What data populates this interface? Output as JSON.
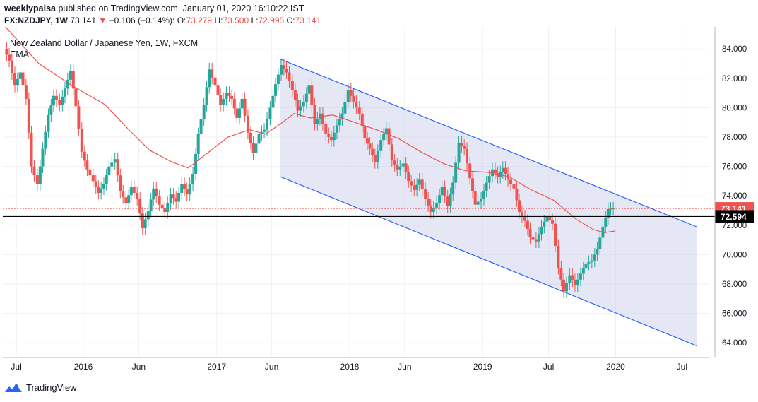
{
  "header": {
    "author": "weeklypaisa",
    "published_text": "published on TradingView.com, January 01, 2020 16:10:22 IST",
    "symbol": "FX:NZDJPY, 1W",
    "last": "73.141",
    "change_arrow": "▼",
    "change": "−0.106 (−0.14%):",
    "o_label": "O:",
    "o_value": "73.279",
    "h_label": "H:",
    "h_value": "73.500",
    "l_label": "L:",
    "l_value": "72.995",
    "c_label": "C:",
    "c_value": "73.141"
  },
  "legend": {
    "title": "New Zealand Dollar / Japanese Yen, 1W, FXCM",
    "indicator": "EMA"
  },
  "footer": {
    "brand": "TradingView"
  },
  "colors": {
    "up": "#26a69a",
    "down": "#ef5350",
    "ema": "#ef5350",
    "channel": "#2962ff",
    "channel_fill": "#c5cae9",
    "grid": "#eef0f4",
    "price_tag": "#ef5350",
    "level_tag": "#000000"
  },
  "chart_data": {
    "type": "candlestick",
    "y_axis": {
      "min": 63,
      "max": 85.5,
      "ticks": [
        64,
        66,
        68,
        70,
        72,
        74,
        76,
        78,
        80,
        82,
        84
      ],
      "tick_labels": [
        "64.000",
        "66.000",
        "68.000",
        "70.000",
        "72.000",
        "74.000",
        "76.000",
        "78.000",
        "80.000",
        "82.000",
        "84.000"
      ],
      "position": "right"
    },
    "x_axis": {
      "start": "2015-05-25",
      "end": "2020-09-14",
      "ticks": [
        {
          "date": "2015-07-01",
          "label": "Jul"
        },
        {
          "date": "2016-01-01",
          "label": "2016"
        },
        {
          "date": "2016-06-01",
          "label": "Jun"
        },
        {
          "date": "2017-01-01",
          "label": "2017"
        },
        {
          "date": "2017-06-01",
          "label": "Jun"
        },
        {
          "date": "2018-01-01",
          "label": "2018"
        },
        {
          "date": "2018-06-01",
          "label": "Jun"
        },
        {
          "date": "2019-01-01",
          "label": "2019"
        },
        {
          "date": "2019-07-01",
          "label": "Jul"
        },
        {
          "date": "2020-01-01",
          "label": "2020"
        },
        {
          "date": "2020-07-01",
          "label": "Jul"
        }
      ]
    },
    "series_close": [
      [
        "2015-06-01",
        84.0
      ],
      [
        "2015-06-15",
        83.2
      ],
      [
        "2015-07-01",
        81.5
      ],
      [
        "2015-07-15",
        82.4
      ],
      [
        "2015-08-01",
        80.6
      ],
      [
        "2015-08-15",
        76.0
      ],
      [
        "2015-09-01",
        74.8
      ],
      [
        "2015-09-15",
        77.2
      ],
      [
        "2015-10-01",
        79.5
      ],
      [
        "2015-10-15",
        80.8
      ],
      [
        "2015-11-01",
        80.2
      ],
      [
        "2015-11-15",
        81.3
      ],
      [
        "2015-12-01",
        82.5
      ],
      [
        "2015-12-15",
        80.1
      ],
      [
        "2016-01-01",
        77.0
      ],
      [
        "2016-01-15",
        75.8
      ],
      [
        "2016-02-01",
        75.0
      ],
      [
        "2016-02-15",
        74.2
      ],
      [
        "2016-03-01",
        74.8
      ],
      [
        "2016-03-15",
        76.0
      ],
      [
        "2016-04-01",
        76.5
      ],
      [
        "2016-04-15",
        74.3
      ],
      [
        "2016-05-01",
        73.5
      ],
      [
        "2016-05-15",
        74.6
      ],
      [
        "2016-06-01",
        73.8
      ],
      [
        "2016-06-15",
        71.8
      ],
      [
        "2016-07-01",
        73.0
      ],
      [
        "2016-07-15",
        74.5
      ],
      [
        "2016-08-01",
        73.4
      ],
      [
        "2016-08-15",
        72.9
      ],
      [
        "2016-09-01",
        74.1
      ],
      [
        "2016-09-15",
        73.6
      ],
      [
        "2016-10-01",
        74.8
      ],
      [
        "2016-10-15",
        74.1
      ],
      [
        "2016-11-01",
        75.5
      ],
      [
        "2016-11-15",
        78.2
      ],
      [
        "2016-12-01",
        80.2
      ],
      [
        "2016-12-15",
        82.6
      ],
      [
        "2017-01-01",
        81.5
      ],
      [
        "2017-01-15",
        80.2
      ],
      [
        "2017-02-01",
        81.0
      ],
      [
        "2017-02-15",
        80.6
      ],
      [
        "2017-03-01",
        79.3
      ],
      [
        "2017-03-15",
        80.6
      ],
      [
        "2017-04-01",
        78.3
      ],
      [
        "2017-04-15",
        76.9
      ],
      [
        "2017-05-01",
        78.2
      ],
      [
        "2017-05-15",
        78.5
      ],
      [
        "2017-06-01",
        80.0
      ],
      [
        "2017-06-15",
        81.6
      ],
      [
        "2017-07-01",
        82.9
      ],
      [
        "2017-07-15",
        82.4
      ],
      [
        "2017-08-01",
        81.2
      ],
      [
        "2017-08-15",
        79.8
      ],
      [
        "2017-09-01",
        80.4
      ],
      [
        "2017-09-15",
        81.5
      ],
      [
        "2017-10-01",
        78.9
      ],
      [
        "2017-10-15",
        79.6
      ],
      [
        "2017-11-01",
        78.2
      ],
      [
        "2017-11-15",
        77.8
      ],
      [
        "2017-12-01",
        78.8
      ],
      [
        "2017-12-15",
        79.6
      ],
      [
        "2018-01-01",
        81.2
      ],
      [
        "2018-01-15",
        80.4
      ],
      [
        "2018-02-01",
        79.6
      ],
      [
        "2018-02-15",
        77.9
      ],
      [
        "2018-03-01",
        77.2
      ],
      [
        "2018-03-15",
        76.3
      ],
      [
        "2018-04-01",
        77.8
      ],
      [
        "2018-04-15",
        78.6
      ],
      [
        "2018-05-01",
        76.4
      ],
      [
        "2018-05-15",
        75.8
      ],
      [
        "2018-06-01",
        76.2
      ],
      [
        "2018-06-15",
        75.0
      ],
      [
        "2018-07-01",
        74.4
      ],
      [
        "2018-07-15",
        75.1
      ],
      [
        "2018-08-01",
        73.8
      ],
      [
        "2018-08-15",
        72.9
      ],
      [
        "2018-09-01",
        73.5
      ],
      [
        "2018-09-15",
        74.6
      ],
      [
        "2018-10-01",
        73.3
      ],
      [
        "2018-10-15",
        74.9
      ],
      [
        "2018-11-01",
        77.6
      ],
      [
        "2018-11-15",
        77.2
      ],
      [
        "2018-12-01",
        75.2
      ],
      [
        "2018-12-15",
        73.4
      ],
      [
        "2019-01-01",
        73.8
      ],
      [
        "2019-01-15",
        74.9
      ],
      [
        "2019-02-01",
        75.8
      ],
      [
        "2019-02-15",
        75.3
      ],
      [
        "2019-03-01",
        75.9
      ],
      [
        "2019-03-15",
        75.1
      ],
      [
        "2019-04-01",
        74.5
      ],
      [
        "2019-04-15",
        72.9
      ],
      [
        "2019-05-01",
        72.3
      ],
      [
        "2019-05-15",
        71.2
      ],
      [
        "2019-06-01",
        70.9
      ],
      [
        "2019-06-15",
        71.9
      ],
      [
        "2019-07-01",
        72.6
      ],
      [
        "2019-07-15",
        72.1
      ],
      [
        "2019-08-01",
        69.1
      ],
      [
        "2019-08-15",
        67.5
      ],
      [
        "2019-09-01",
        68.6
      ],
      [
        "2019-09-15",
        67.9
      ],
      [
        "2019-10-01",
        68.7
      ],
      [
        "2019-10-15",
        69.4
      ],
      [
        "2019-11-01",
        69.6
      ],
      [
        "2019-11-15",
        70.4
      ],
      [
        "2019-12-01",
        71.9
      ],
      [
        "2019-12-15",
        73.1
      ],
      [
        "2019-12-29",
        73.141
      ]
    ],
    "ema": [
      [
        "2015-06-01",
        85.5
      ],
      [
        "2015-09-01",
        83.0
      ],
      [
        "2015-12-01",
        81.5
      ],
      [
        "2016-03-01",
        80.2
      ],
      [
        "2016-05-01",
        78.6
      ],
      [
        "2016-07-01",
        77.1
      ],
      [
        "2016-09-01",
        76.3
      ],
      [
        "2016-10-15",
        75.9
      ],
      [
        "2016-12-01",
        76.8
      ],
      [
        "2017-02-01",
        78.0
      ],
      [
        "2017-04-01",
        78.5
      ],
      [
        "2017-05-15",
        78.2
      ],
      [
        "2017-07-01",
        79.0
      ],
      [
        "2017-08-01",
        79.6
      ],
      [
        "2017-09-15",
        79.3
      ],
      [
        "2017-11-15",
        79.5
      ],
      [
        "2018-01-15",
        79.0
      ],
      [
        "2018-03-15",
        78.5
      ],
      [
        "2018-05-15",
        77.9
      ],
      [
        "2018-07-15",
        77.0
      ],
      [
        "2018-09-15",
        76.2
      ],
      [
        "2018-11-15",
        75.7
      ],
      [
        "2019-01-15",
        75.6
      ],
      [
        "2019-03-15",
        75.3
      ],
      [
        "2019-05-15",
        74.4
      ],
      [
        "2019-07-15",
        73.7
      ],
      [
        "2019-09-15",
        72.4
      ],
      [
        "2019-11-01",
        71.7
      ],
      [
        "2019-12-01",
        71.5
      ],
      [
        "2019-12-29",
        71.6
      ]
    ],
    "channel": {
      "upper": [
        [
          "2017-06-25",
          83.3
        ],
        [
          "2020-08-10",
          71.9
        ]
      ],
      "lower": [
        [
          "2017-06-25",
          75.3
        ],
        [
          "2020-08-10",
          63.8
        ]
      ]
    },
    "price_line": {
      "value": 73.141,
      "label": "73.141"
    },
    "level_line": {
      "value": 72.594,
      "label": "72.594"
    }
  }
}
